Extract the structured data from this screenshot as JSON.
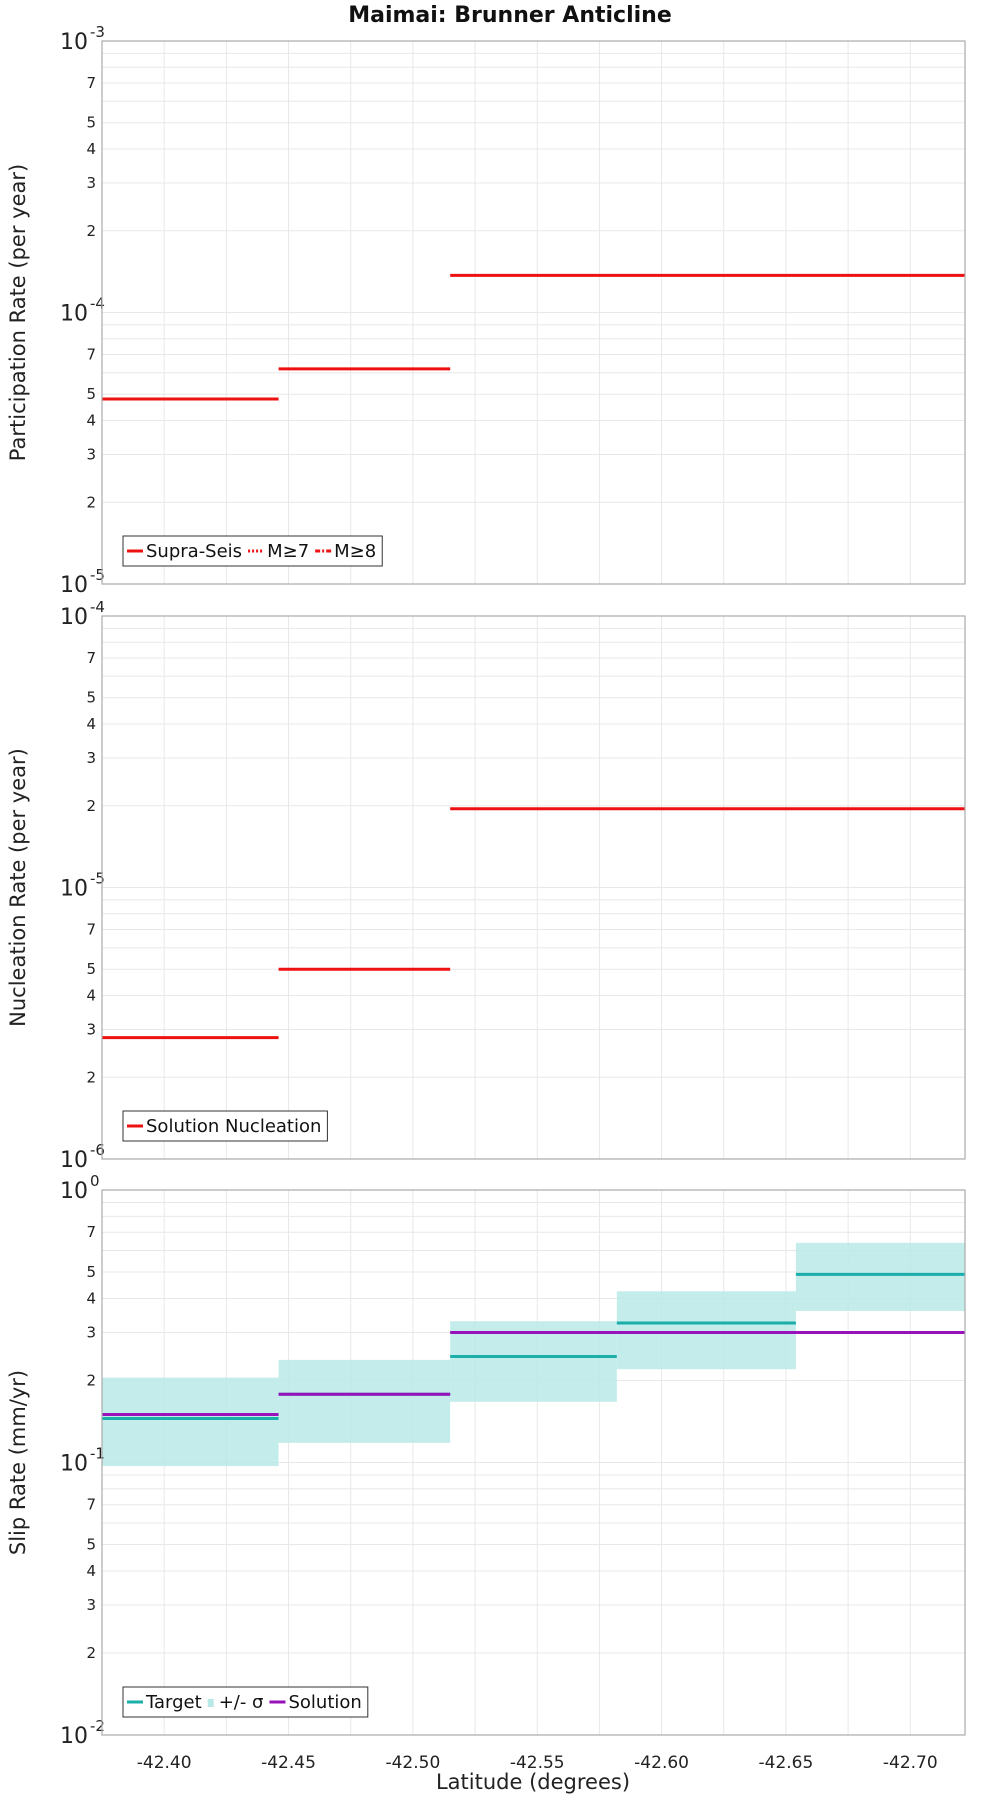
{
  "figure": {
    "title": "Maimai: Brunner Anticline",
    "xlabel": "Latitude (degrees)",
    "x_ticks": [
      "-42.40",
      "-42.45",
      "-42.50",
      "-42.55",
      "-42.60",
      "-42.65",
      "-42.70"
    ]
  },
  "chart_data": [
    {
      "type": "line",
      "title": "Maimai: Brunner Anticline",
      "ylabel": "Participation Rate (per year)",
      "xlabel": "Latitude (degrees)",
      "yscale": "log",
      "ylim": [
        1e-05,
        0.001
      ],
      "xlim": [
        -42.375,
        -42.722
      ],
      "y_ticks": [
        {
          "value": 1e-05,
          "base": "10",
          "exp": "-5"
        },
        {
          "value": 2e-05,
          "label": "2"
        },
        {
          "value": 3e-05,
          "label": "3"
        },
        {
          "value": 4e-05,
          "label": "4"
        },
        {
          "value": 5e-05,
          "label": "5"
        },
        {
          "value": 7e-05,
          "label": "7"
        },
        {
          "value": 0.0001,
          "base": "10",
          "exp": "-4"
        },
        {
          "value": 0.0002,
          "label": "2"
        },
        {
          "value": 0.0003,
          "label": "3"
        },
        {
          "value": 0.0004,
          "label": "4"
        },
        {
          "value": 0.0005,
          "label": "5"
        },
        {
          "value": 0.0007,
          "label": "7"
        },
        {
          "value": 0.001,
          "base": "10",
          "exp": "-3"
        }
      ],
      "series": [
        {
          "name": "Supra-Seis",
          "color": "#ee1111",
          "style": "solid",
          "steps": [
            {
              "x0": -42.375,
              "x1": -42.446,
              "y": 4.8e-05
            },
            {
              "x0": -42.446,
              "x1": -42.515,
              "y": 6.2e-05
            },
            {
              "x0": -42.515,
              "x1": -42.722,
              "y": 0.000137
            }
          ]
        },
        {
          "name": "M≥7",
          "color": "#ee1111",
          "style": "dotted",
          "steps": []
        },
        {
          "name": "M≥8",
          "color": "#ee1111",
          "style": "dashdot",
          "steps": []
        }
      ],
      "legend": [
        {
          "label": "Supra-Seis",
          "color": "#ee1111",
          "style": "solid"
        },
        {
          "label": "M≥7",
          "color": "#ee1111",
          "style": "dotted"
        },
        {
          "label": "M≥8",
          "color": "#ee1111",
          "style": "dashdot"
        }
      ]
    },
    {
      "type": "line",
      "ylabel": "Nucleation Rate (per year)",
      "xlabel": "Latitude (degrees)",
      "yscale": "log",
      "ylim": [
        1e-06,
        0.0001
      ],
      "xlim": [
        -42.375,
        -42.722
      ],
      "y_ticks": [
        {
          "value": 1e-06,
          "base": "10",
          "exp": "-6"
        },
        {
          "value": 2e-06,
          "label": "2"
        },
        {
          "value": 3e-06,
          "label": "3"
        },
        {
          "value": 4e-06,
          "label": "4"
        },
        {
          "value": 5e-06,
          "label": "5"
        },
        {
          "value": 7e-06,
          "label": "7"
        },
        {
          "value": 1e-05,
          "base": "10",
          "exp": "-5"
        },
        {
          "value": 2e-05,
          "label": "2"
        },
        {
          "value": 3e-05,
          "label": "3"
        },
        {
          "value": 4e-05,
          "label": "4"
        },
        {
          "value": 5e-05,
          "label": "5"
        },
        {
          "value": 7e-05,
          "label": "7"
        },
        {
          "value": 0.0001,
          "base": "10",
          "exp": "-4"
        }
      ],
      "series": [
        {
          "name": "Solution Nucleation",
          "color": "#ee1111",
          "style": "solid",
          "steps": [
            {
              "x0": -42.375,
              "x1": -42.446,
              "y": 2.8e-06
            },
            {
              "x0": -42.446,
              "x1": -42.515,
              "y": 5e-06
            },
            {
              "x0": -42.515,
              "x1": -42.722,
              "y": 1.95e-05
            }
          ]
        }
      ],
      "legend": [
        {
          "label": "Solution Nucleation",
          "color": "#ee1111",
          "style": "solid"
        }
      ]
    },
    {
      "type": "line",
      "ylabel": "Slip Rate (mm/yr)",
      "xlabel": "Latitude (degrees)",
      "yscale": "log",
      "ylim": [
        0.01,
        1.0
      ],
      "xlim": [
        -42.375,
        -42.722
      ],
      "y_ticks": [
        {
          "value": 0.01,
          "base": "10",
          "exp": "-2"
        },
        {
          "value": 0.02,
          "label": "2"
        },
        {
          "value": 0.03,
          "label": "3"
        },
        {
          "value": 0.04,
          "label": "4"
        },
        {
          "value": 0.05,
          "label": "5"
        },
        {
          "value": 0.07,
          "label": "7"
        },
        {
          "value": 0.1,
          "base": "10",
          "exp": "-1"
        },
        {
          "value": 0.2,
          "label": "2"
        },
        {
          "value": 0.3,
          "label": "3"
        },
        {
          "value": 0.4,
          "label": "4"
        },
        {
          "value": 0.5,
          "label": "5"
        },
        {
          "value": 0.7,
          "label": "7"
        },
        {
          "value": 1.0,
          "base": "10",
          "exp": "0"
        }
      ],
      "bands": [
        {
          "x0": -42.375,
          "x1": -42.446,
          "y0": 0.097,
          "y1": 0.205
        },
        {
          "x0": -42.446,
          "x1": -42.515,
          "y0": 0.118,
          "y1": 0.238
        },
        {
          "x0": -42.515,
          "x1": -42.582,
          "y0": 0.167,
          "y1": 0.33
        },
        {
          "x0": -42.582,
          "x1": -42.654,
          "y0": 0.22,
          "y1": 0.425
        },
        {
          "x0": -42.654,
          "x1": -42.722,
          "y0": 0.36,
          "y1": 0.64
        }
      ],
      "series": [
        {
          "name": "Target",
          "color": "#1aafaa",
          "style": "solid",
          "steps": [
            {
              "x0": -42.375,
              "x1": -42.446,
              "y": 0.145
            },
            {
              "x0": -42.446,
              "x1": -42.515,
              "y": 0.178
            },
            {
              "x0": -42.515,
              "x1": -42.582,
              "y": 0.245
            },
            {
              "x0": -42.582,
              "x1": -42.654,
              "y": 0.325
            },
            {
              "x0": -42.654,
              "x1": -42.722,
              "y": 0.49
            }
          ]
        },
        {
          "name": "Solution",
          "color": "#9911bb",
          "style": "solid",
          "steps": [
            {
              "x0": -42.375,
              "x1": -42.446,
              "y": 0.15
            },
            {
              "x0": -42.446,
              "x1": -42.515,
              "y": 0.178
            },
            {
              "x0": -42.515,
              "x1": -42.722,
              "y": 0.3
            }
          ]
        }
      ],
      "legend": [
        {
          "label": "Target",
          "color": "#1aafaa",
          "style": "solid"
        },
        {
          "label": "+/- σ",
          "color": "#b9e9e7",
          "style": "band"
        },
        {
          "label": "Solution",
          "color": "#9911bb",
          "style": "solid"
        }
      ]
    }
  ]
}
